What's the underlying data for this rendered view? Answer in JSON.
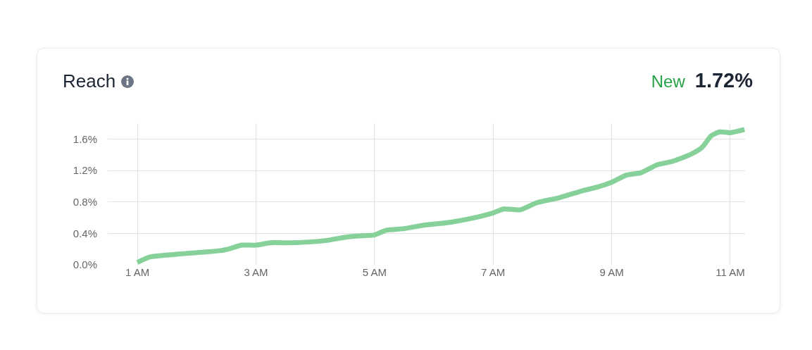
{
  "chart_data": {
    "type": "line",
    "title": "Reach",
    "annotations": [
      "New",
      "1.72%"
    ],
    "x": [
      1,
      1.21,
      1.45,
      1.75,
      2.1,
      2.4,
      2.58,
      2.76,
      3,
      3.24,
      3.54,
      3.9,
      4.2,
      4.5,
      4.8,
      5,
      5.2,
      5.5,
      5.8,
      6.27,
      6.63,
      7,
      7.18,
      7.46,
      7.74,
      8.1,
      8.5,
      8.77,
      9,
      9.25,
      9.49,
      9.76,
      10,
      10.32,
      10.52,
      10.68,
      10.82,
      11,
      11.24
    ],
    "series": [
      {
        "color": "#86d19a",
        "values": [
          0.03,
          0.1,
          0.12,
          0.14,
          0.16,
          0.18,
          0.21,
          0.25,
          0.25,
          0.28,
          0.28,
          0.29,
          0.31,
          0.35,
          0.37,
          0.38,
          0.44,
          0.46,
          0.5,
          0.54,
          0.59,
          0.66,
          0.71,
          0.7,
          0.79,
          0.85,
          0.94,
          0.99,
          1.05,
          1.14,
          1.17,
          1.27,
          1.31,
          1.4,
          1.49,
          1.64,
          1.69,
          1.68,
          1.72
        ]
      }
    ],
    "xlim": [
      0.5,
      11.25
    ],
    "xticks": [
      {
        "value": 1,
        "label": "1 AM"
      },
      {
        "value": 3,
        "label": "3 AM"
      },
      {
        "value": 5,
        "label": "5 AM"
      },
      {
        "value": 7,
        "label": "7 AM"
      },
      {
        "value": 9,
        "label": "9 AM"
      },
      {
        "value": 11,
        "label": "11 AM"
      }
    ],
    "ylim": [
      0,
      1.8
    ],
    "yticks": [
      {
        "value": 0,
        "label": "0.0%"
      },
      {
        "value": 0.4,
        "label": "0.4%"
      },
      {
        "value": 0.8,
        "label": "0.8%"
      },
      {
        "value": 1.2,
        "label": "1.2%"
      },
      {
        "value": 1.6,
        "label": "1.6%"
      }
    ],
    "grid": true,
    "legend": false,
    "marker": "none",
    "line_style": "solid"
  }
}
